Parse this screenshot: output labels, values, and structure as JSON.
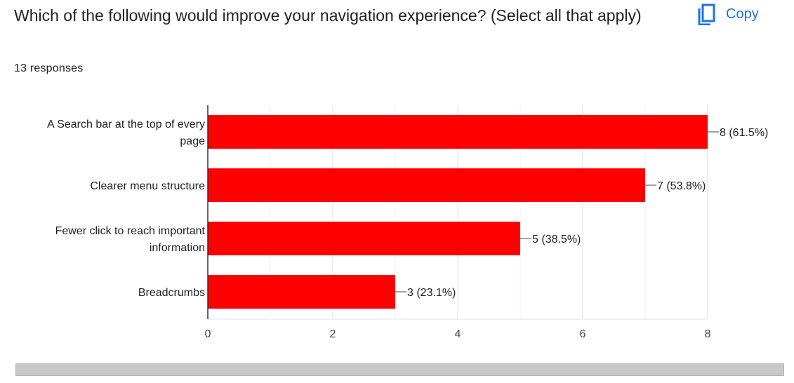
{
  "question": {
    "title": "Which of the following would improve your navigation experience? (Select all that apply)",
    "responses": "13 responses"
  },
  "copy_button": {
    "label": "Copy",
    "icon": "copy-icon",
    "color": "#1a73e8"
  },
  "chart_data": {
    "type": "bar",
    "orientation": "horizontal",
    "categories": [
      [
        "A Search bar at the top of every",
        "page"
      ],
      [
        "Clearer menu structure"
      ],
      [
        "Fewer click to reach important",
        "information"
      ],
      [
        "Breadcrumbs"
      ]
    ],
    "values": [
      8,
      7,
      5,
      3
    ],
    "data_labels": [
      "8 (61.5%)",
      "7 (53.8%)",
      "5 (38.5%)",
      "3 (23.1%)"
    ],
    "xlim": [
      0,
      8
    ],
    "xticks": [
      0,
      2,
      4,
      6,
      8
    ],
    "grid": true,
    "bar_color": "#ff0000"
  }
}
